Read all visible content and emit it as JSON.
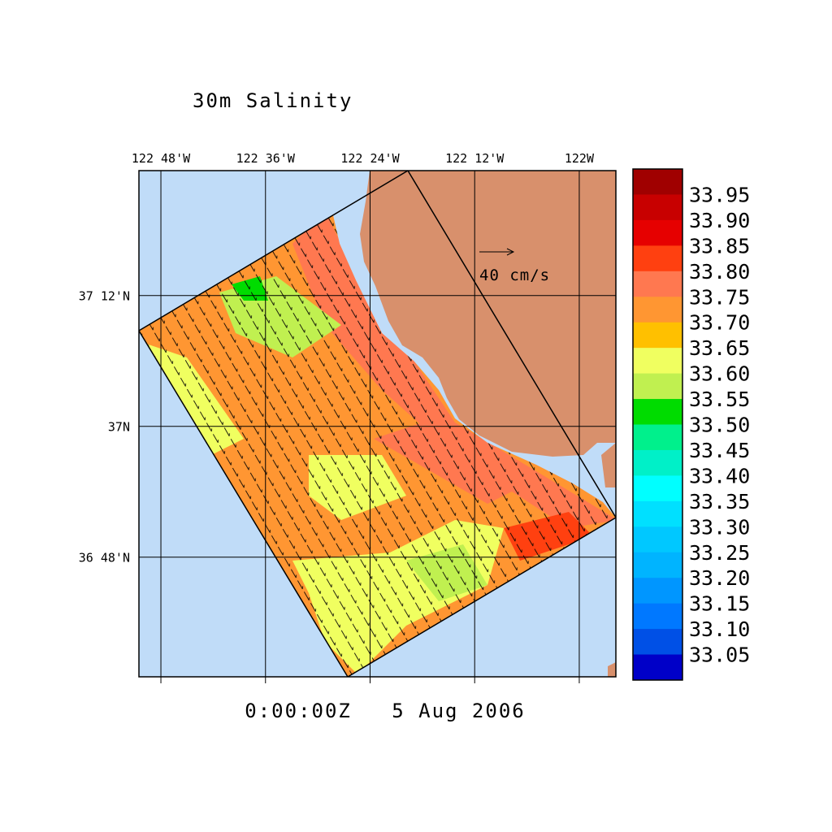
{
  "title": "30m Salinity",
  "timestamp": "0:00:00Z   5 Aug 2006",
  "vector_scale_label": "40 cm/s",
  "map": {
    "lonlim": [
      -122.842,
      -121.93
    ],
    "latlim": [
      36.617,
      37.391
    ],
    "lon_ticks": [
      {
        "value": -122.8,
        "label": "122 48'W"
      },
      {
        "value": -122.6,
        "label": "122 36'W"
      },
      {
        "value": -122.4,
        "label": "122 24'W"
      },
      {
        "value": -122.2,
        "label": "122 12'W"
      },
      {
        "value": -122.0,
        "label": "122W"
      }
    ],
    "lat_ticks": [
      {
        "value": 37.2,
        "label": "37 12'N"
      },
      {
        "value": 37.0,
        "label": "37N"
      },
      {
        "value": 36.8,
        "label": "36 48'N"
      }
    ]
  },
  "colorbar": {
    "colors": [
      "#a00000",
      "#c80000",
      "#e60000",
      "#ff4010",
      "#ff7850",
      "#ff9632",
      "#ffc000",
      "#f0ff60",
      "#c0f050",
      "#00dc00",
      "#00f08c",
      "#00f0c8",
      "#00ffff",
      "#00e0ff",
      "#00c8ff",
      "#00b4ff",
      "#0096ff",
      "#0078ff",
      "#0050e6",
      "#0000c8"
    ],
    "labels": [
      "33.95",
      "33.90",
      "33.85",
      "33.80",
      "33.75",
      "33.70",
      "33.65",
      "33.60",
      "33.55",
      "33.50",
      "33.45",
      "33.40",
      "33.35",
      "33.30",
      "33.25",
      "33.20",
      "33.15",
      "33.10",
      "33.05"
    ]
  }
}
